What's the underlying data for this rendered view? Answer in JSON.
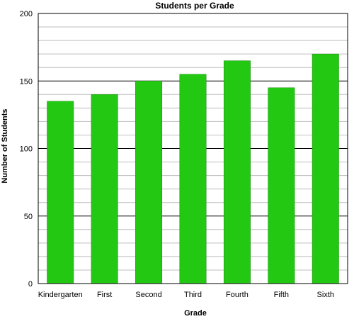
{
  "chart_data": {
    "type": "bar",
    "title": "Students per Grade",
    "xlabel": "Grade",
    "ylabel": "Number of Students",
    "categories": [
      "Kindergarten",
      "First",
      "Second",
      "Third",
      "Fourth",
      "Fifth",
      "Sixth"
    ],
    "values": [
      135,
      140,
      150,
      155,
      165,
      145,
      170
    ],
    "ylim": [
      0,
      200
    ],
    "yticks": [
      "0",
      "50",
      "100",
      "150",
      "200"
    ],
    "grid": true,
    "legend": "none",
    "bar_color": "#22c812",
    "bar_edge_color": "#1a8a0e"
  }
}
